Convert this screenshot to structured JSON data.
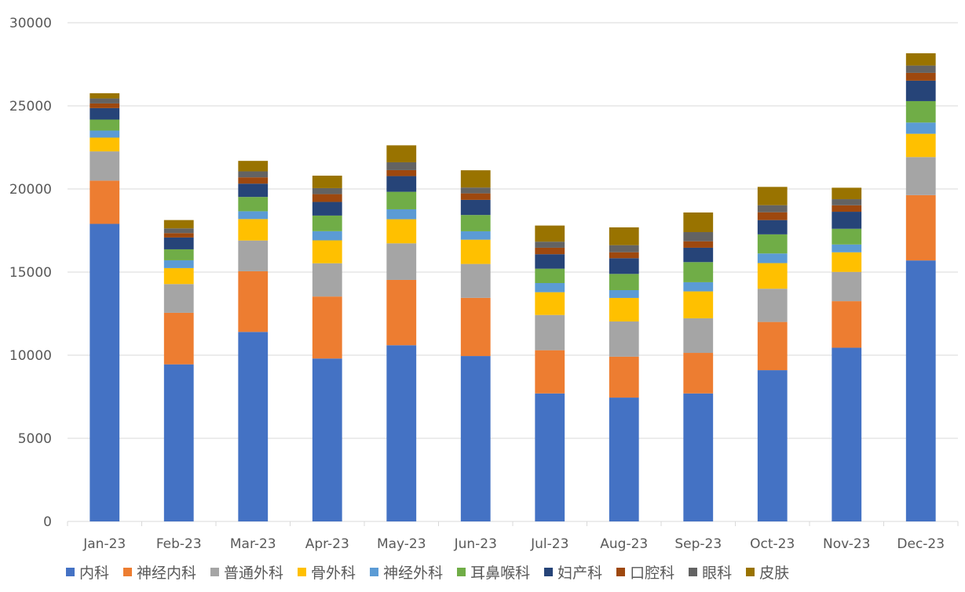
{
  "chart_data": {
    "type": "bar",
    "stacked": true,
    "title": "",
    "xlabel": "",
    "ylabel": "",
    "ylim": [
      0,
      30000
    ],
    "yticks": [
      0,
      5000,
      10000,
      15000,
      20000,
      25000,
      30000
    ],
    "ytick_labels": [
      "0",
      "5000",
      "10000",
      "15000",
      "20000",
      "25000",
      "30000"
    ],
    "grid": true,
    "legend_position": "bottom",
    "categories": [
      "Jan-23",
      "Feb-23",
      "Mar-23",
      "Apr-23",
      "May-23",
      "Jun-23",
      "Jul-23",
      "Aug-23",
      "Sep-23",
      "Oct-23",
      "Nov-23",
      "Dec-23"
    ],
    "series": [
      {
        "name": "内科",
        "color": "#4472c4",
        "values": [
          17900,
          9450,
          11400,
          9800,
          10600,
          9950,
          7700,
          7450,
          7700,
          9100,
          10450,
          15700
        ]
      },
      {
        "name": "神经内科",
        "color": "#ed7d31",
        "values": [
          2600,
          3100,
          3650,
          3730,
          3930,
          3500,
          2600,
          2460,
          2440,
          2900,
          2800,
          3930
        ]
      },
      {
        "name": "普通外科",
        "color": "#a5a5a5",
        "values": [
          1760,
          1730,
          1850,
          2000,
          2200,
          2040,
          2120,
          2120,
          2080,
          2000,
          1760,
          2290
        ]
      },
      {
        "name": "骨外科",
        "color": "#ffc000",
        "values": [
          830,
          960,
          1290,
          1380,
          1450,
          1460,
          1370,
          1415,
          1620,
          1540,
          1180,
          1400
        ]
      },
      {
        "name": "神经外科",
        "color": "#5b9bd5",
        "values": [
          425,
          470,
          470,
          550,
          595,
          505,
          550,
          470,
          550,
          580,
          470,
          675
        ]
      },
      {
        "name": "耳鼻喉科",
        "color": "#70ad47",
        "values": [
          660,
          660,
          860,
          940,
          1055,
          980,
          865,
          975,
          1210,
          1150,
          945,
          1290
        ]
      },
      {
        "name": "妇产科",
        "color": "#264478",
        "values": [
          690,
          710,
          800,
          820,
          945,
          910,
          870,
          945,
          865,
          860,
          1025,
          1230
        ]
      },
      {
        "name": "口腔科",
        "color": "#9e480e",
        "values": [
          280,
          265,
          380,
          470,
          360,
          390,
          390,
          360,
          390,
          470,
          390,
          470
        ]
      },
      {
        "name": "眼科",
        "color": "#636363",
        "values": [
          300,
          285,
          360,
          360,
          470,
          350,
          365,
          425,
          550,
          425,
          365,
          440
        ]
      },
      {
        "name": "皮肤",
        "color": "#997300",
        "values": [
          315,
          500,
          630,
          750,
          1020,
          1040,
          970,
          1070,
          1180,
          1100,
          690,
          740
        ]
      }
    ]
  }
}
